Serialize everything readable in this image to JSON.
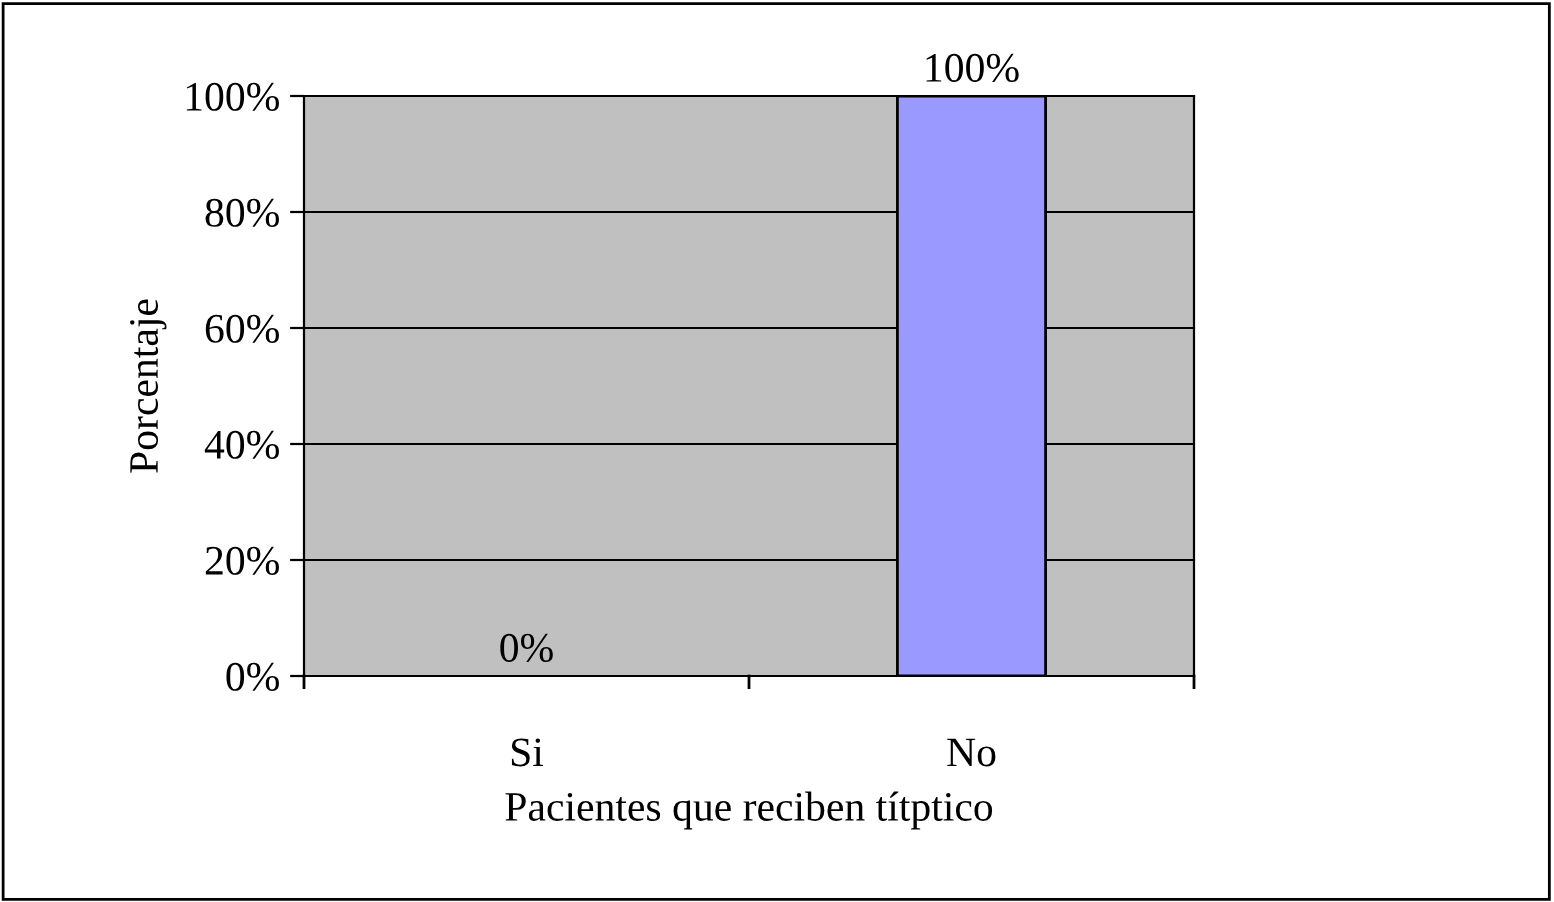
{
  "chart_data": {
    "type": "bar",
    "xlabel": "Pacientes que reciben títptico",
    "ylabel": "Porcentaje",
    "categories": [
      "Si",
      "No"
    ],
    "values": [
      0,
      100
    ],
    "color": "#9999ff",
    "value_labels": [
      "0%",
      "100%"
    ],
    "ylim": [
      0,
      100
    ],
    "yticks": [
      {
        "value": 0,
        "label": "0%"
      },
      {
        "value": 20,
        "label": "20%"
      },
      {
        "value": 40,
        "label": "40%"
      },
      {
        "value": 60,
        "label": "60%"
      },
      {
        "value": 80,
        "label": "80%"
      },
      {
        "value": 100,
        "label": "100%"
      }
    ],
    "grid": "y"
  }
}
